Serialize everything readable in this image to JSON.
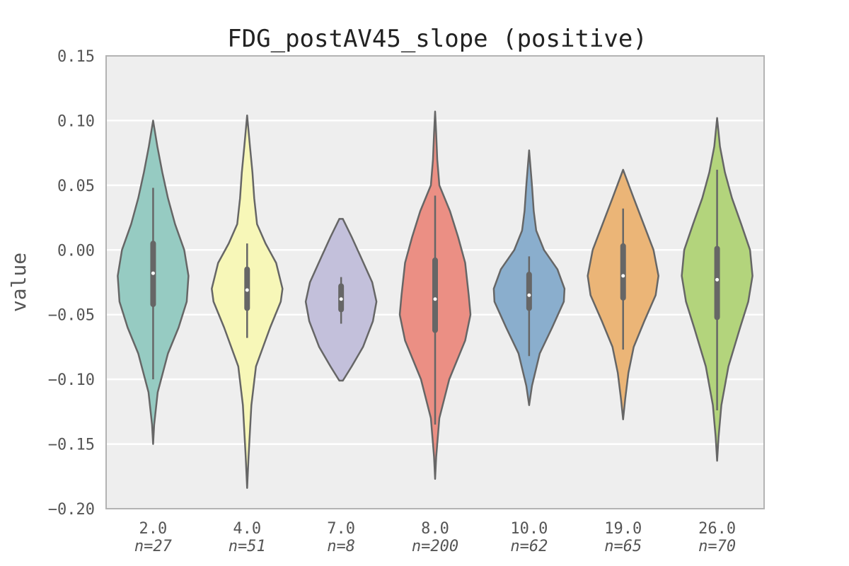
{
  "chart_data": {
    "type": "violin",
    "title": "FDG_postAV45_slope (positive)",
    "ylabel": "value",
    "xlabel": "",
    "ylim": [
      -0.2,
      0.15
    ],
    "yticks": [
      "0.15",
      "0.10",
      "0.05",
      "0.00",
      "−0.05",
      "−0.10",
      "−0.15",
      "−0.20"
    ],
    "ytick_values": [
      0.15,
      0.1,
      0.05,
      0.0,
      -0.05,
      -0.1,
      -0.15,
      -0.2
    ],
    "grid": true,
    "categories": [
      {
        "label": "2.0",
        "n_label": "n=27",
        "color": "#96cbc2",
        "range": [
          -0.15,
          0.1
        ],
        "median": -0.018,
        "q1": -0.042,
        "q3": 0.005,
        "whisker": [
          -0.1,
          0.048
        ],
        "density": [
          [
            -0.15,
            0.0
          ],
          [
            -0.135,
            0.03
          ],
          [
            -0.11,
            0.13
          ],
          [
            -0.08,
            0.42
          ],
          [
            -0.06,
            0.72
          ],
          [
            -0.04,
            0.95
          ],
          [
            -0.02,
            1.0
          ],
          [
            0.0,
            0.88
          ],
          [
            0.02,
            0.62
          ],
          [
            0.04,
            0.42
          ],
          [
            0.06,
            0.26
          ],
          [
            0.08,
            0.12
          ],
          [
            0.1,
            0.0
          ]
        ]
      },
      {
        "label": "4.0",
        "n_label": "n=51",
        "color": "#f7f7b8",
        "range": [
          -0.184,
          0.104
        ],
        "median": -0.031,
        "q1": -0.045,
        "q3": -0.015,
        "whisker": [
          -0.068,
          0.005
        ],
        "density": [
          [
            -0.184,
            0.0
          ],
          [
            -0.16,
            0.04
          ],
          [
            -0.12,
            0.12
          ],
          [
            -0.09,
            0.25
          ],
          [
            -0.06,
            0.65
          ],
          [
            -0.04,
            0.95
          ],
          [
            -0.03,
            1.0
          ],
          [
            -0.01,
            0.82
          ],
          [
            0.005,
            0.52
          ],
          [
            0.02,
            0.28
          ],
          [
            0.04,
            0.2
          ],
          [
            0.06,
            0.15
          ],
          [
            0.08,
            0.08
          ],
          [
            0.104,
            0.0
          ]
        ]
      },
      {
        "label": "7.0",
        "n_label": "n=8",
        "color": "#c3c0db",
        "range": [
          -0.101,
          0.024
        ],
        "median": -0.038,
        "q1": -0.046,
        "q3": -0.028,
        "whisker": [
          -0.057,
          -0.021
        ],
        "density": [
          [
            -0.101,
            0.05
          ],
          [
            -0.09,
            0.3
          ],
          [
            -0.075,
            0.62
          ],
          [
            -0.055,
            0.9
          ],
          [
            -0.04,
            1.0
          ],
          [
            -0.025,
            0.88
          ],
          [
            -0.005,
            0.55
          ],
          [
            0.01,
            0.3
          ],
          [
            0.024,
            0.05
          ]
        ]
      },
      {
        "label": "8.0",
        "n_label": "n=200",
        "color": "#eb8f84",
        "range": [
          -0.177,
          0.107
        ],
        "median": -0.038,
        "q1": -0.062,
        "q3": -0.008,
        "whisker": [
          -0.135,
          0.042
        ],
        "density": [
          [
            -0.177,
            0.0
          ],
          [
            -0.16,
            0.03
          ],
          [
            -0.13,
            0.12
          ],
          [
            -0.1,
            0.4
          ],
          [
            -0.07,
            0.85
          ],
          [
            -0.05,
            1.0
          ],
          [
            -0.035,
            0.95
          ],
          [
            -0.01,
            0.85
          ],
          [
            0.01,
            0.65
          ],
          [
            0.03,
            0.42
          ],
          [
            0.05,
            0.12
          ],
          [
            0.07,
            0.06
          ],
          [
            0.09,
            0.03
          ],
          [
            0.107,
            0.0
          ]
        ]
      },
      {
        "label": "10.0",
        "n_label": "n=62",
        "color": "#8aaecd",
        "range": [
          -0.12,
          0.077
        ],
        "median": -0.035,
        "q1": -0.045,
        "q3": -0.019,
        "whisker": [
          -0.082,
          -0.005
        ],
        "density": [
          [
            -0.12,
            0.0
          ],
          [
            -0.105,
            0.08
          ],
          [
            -0.08,
            0.3
          ],
          [
            -0.06,
            0.65
          ],
          [
            -0.04,
            0.98
          ],
          [
            -0.03,
            1.0
          ],
          [
            -0.015,
            0.8
          ],
          [
            0.0,
            0.42
          ],
          [
            0.015,
            0.2
          ],
          [
            0.03,
            0.13
          ],
          [
            0.05,
            0.08
          ],
          [
            0.077,
            0.0
          ]
        ]
      },
      {
        "label": "19.0",
        "n_label": "n=65",
        "color": "#ebb577",
        "range": [
          -0.131,
          0.062
        ],
        "median": -0.02,
        "q1": -0.037,
        "q3": 0.003,
        "whisker": [
          -0.077,
          0.032
        ],
        "density": [
          [
            -0.131,
            0.0
          ],
          [
            -0.115,
            0.06
          ],
          [
            -0.095,
            0.15
          ],
          [
            -0.075,
            0.3
          ],
          [
            -0.055,
            0.6
          ],
          [
            -0.035,
            0.92
          ],
          [
            -0.02,
            1.0
          ],
          [
            0.0,
            0.86
          ],
          [
            0.02,
            0.58
          ],
          [
            0.04,
            0.3
          ],
          [
            0.062,
            0.0
          ]
        ]
      },
      {
        "label": "26.0",
        "n_label": "n=70",
        "color": "#b3d47c",
        "range": [
          -0.163,
          0.102
        ],
        "median": -0.023,
        "q1": -0.052,
        "q3": 0.001,
        "whisker": [
          -0.124,
          0.062
        ],
        "density": [
          [
            -0.163,
            0.0
          ],
          [
            -0.145,
            0.04
          ],
          [
            -0.12,
            0.12
          ],
          [
            -0.09,
            0.32
          ],
          [
            -0.06,
            0.65
          ],
          [
            -0.04,
            0.88
          ],
          [
            -0.02,
            1.0
          ],
          [
            0.0,
            0.93
          ],
          [
            0.02,
            0.68
          ],
          [
            0.04,
            0.42
          ],
          [
            0.06,
            0.22
          ],
          [
            0.08,
            0.08
          ],
          [
            0.102,
            0.0
          ]
        ]
      }
    ]
  }
}
